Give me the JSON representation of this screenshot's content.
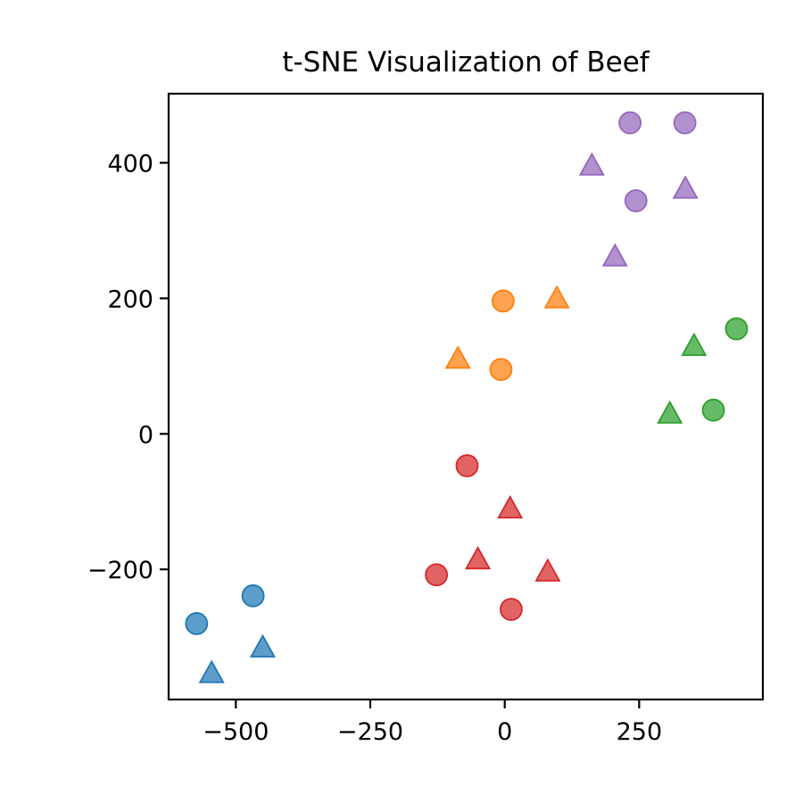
{
  "chart_data": {
    "type": "scatter",
    "title": "t-SNE Visualization of Beef",
    "xlabel": "",
    "ylabel": "",
    "xlim": [
      -625,
      480
    ],
    "ylim": [
      -392,
      502
    ],
    "xticks": [
      -500,
      -250,
      0,
      250
    ],
    "xtick_labels": [
      "−500",
      "−250",
      "0",
      "250"
    ],
    "yticks": [
      -200,
      0,
      200,
      400
    ],
    "ytick_labels": [
      "−200",
      "0",
      "200",
      "400"
    ],
    "grid": false,
    "legend": "none",
    "series": [
      {
        "color": "#1f77b4",
        "points": [
          {
            "x": -573,
            "y": -280,
            "marker": "circle"
          },
          {
            "x": -468,
            "y": -239,
            "marker": "circle"
          },
          {
            "x": -545,
            "y": -353,
            "marker": "triangle"
          },
          {
            "x": -450,
            "y": -315,
            "marker": "triangle"
          }
        ]
      },
      {
        "color": "#ff7f0e",
        "points": [
          {
            "x": -3,
            "y": 196,
            "marker": "circle"
          },
          {
            "x": -7,
            "y": 95,
            "marker": "circle"
          },
          {
            "x": 97,
            "y": 200,
            "marker": "triangle"
          },
          {
            "x": -87,
            "y": 111,
            "marker": "triangle"
          }
        ]
      },
      {
        "color": "#2ca02c",
        "points": [
          {
            "x": 431,
            "y": 155,
            "marker": "circle"
          },
          {
            "x": 388,
            "y": 35,
            "marker": "circle"
          },
          {
            "x": 352,
            "y": 130,
            "marker": "triangle"
          },
          {
            "x": 307,
            "y": 30,
            "marker": "triangle"
          }
        ]
      },
      {
        "color": "#d62728",
        "points": [
          {
            "x": -70,
            "y": -47,
            "marker": "circle"
          },
          {
            "x": -127,
            "y": -208,
            "marker": "circle"
          },
          {
            "x": 12,
            "y": -259,
            "marker": "circle"
          },
          {
            "x": 10,
            "y": -110,
            "marker": "triangle"
          },
          {
            "x": -50,
            "y": -185,
            "marker": "triangle"
          },
          {
            "x": 80,
            "y": -203,
            "marker": "triangle"
          }
        ]
      },
      {
        "color": "#9467bd",
        "points": [
          {
            "x": 233,
            "y": 459,
            "marker": "circle"
          },
          {
            "x": 335,
            "y": 459,
            "marker": "circle"
          },
          {
            "x": 244,
            "y": 344,
            "marker": "circle"
          },
          {
            "x": 162,
            "y": 396,
            "marker": "triangle"
          },
          {
            "x": 336,
            "y": 362,
            "marker": "triangle"
          },
          {
            "x": 205,
            "y": 262,
            "marker": "triangle"
          }
        ]
      }
    ]
  }
}
